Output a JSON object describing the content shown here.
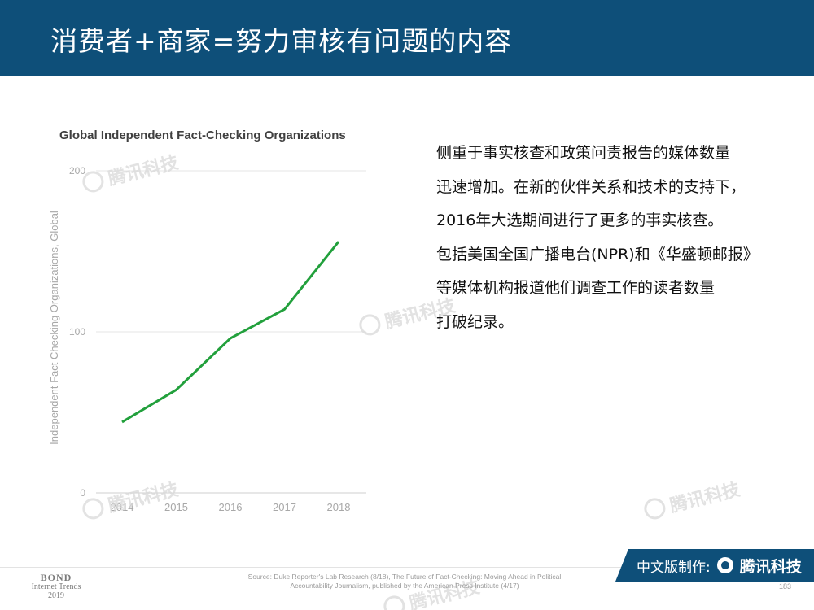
{
  "header": {
    "title": "消费者+商家=努力审核有问题的内容",
    "background": "#0e4f79"
  },
  "body_text": {
    "lines": [
      "侧重于事实核查和政策问责报告的媒体数量",
      "迅速增加。在新的伙伴关系和技术的支持下，",
      "2016年大选期间进行了更多的事实核查。",
      "包括美国全国广播电台(NPR)和《华盛顿邮报》",
      "等媒体机构报道他们调查工作的读者数量",
      "打破纪录。"
    ]
  },
  "watermark": {
    "text": "腾讯科技"
  },
  "footer": {
    "bond": [
      "BOND",
      "Internet Trends",
      "2019"
    ],
    "source_lines": [
      "Source: Duke Reporter's Lab Research (8/18), The Future of Fact-Checking: Moving Ahead in Political",
      "Accountability Journalism, published by the American Press Institute (4/17)"
    ],
    "badge_label": "中文版制作:",
    "badge_brand": "腾讯科技",
    "page_number": "183"
  },
  "chart_data": {
    "type": "line",
    "title": "Global Independent Fact-Checking Organizations",
    "xlabel": "",
    "ylabel": "Independent Fact Checking Organizations, Global",
    "categories": [
      "2014",
      "2015",
      "2016",
      "2017",
      "2018"
    ],
    "values": [
      44,
      64,
      96,
      114,
      156
    ],
    "ylim": [
      0,
      200
    ],
    "yticks": [
      0,
      100,
      200
    ],
    "grid": true,
    "line_color": "#22a03c"
  }
}
